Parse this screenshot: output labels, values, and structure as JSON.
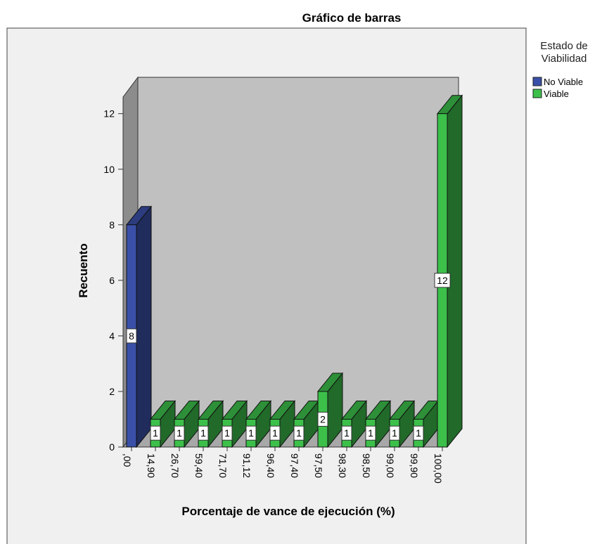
{
  "chart_data": {
    "type": "bar3d",
    "title": "Gráfico de barras",
    "x_label": "Porcentaje de vance de ejecución (%)",
    "y_label": "Recuento",
    "legend_title": "Estado de Viabilidad",
    "categories": [
      ",00",
      "14,90",
      "26,70",
      "59,40",
      "71,70",
      "91,12",
      "96,40",
      "97,40",
      "97,50",
      "98,30",
      "98,50",
      "99,00",
      "99,90",
      "100,00"
    ],
    "series": [
      {
        "name": "No Viable",
        "color": "#3a50a8",
        "values": [
          8,
          null,
          null,
          null,
          null,
          null,
          null,
          null,
          null,
          null,
          null,
          null,
          null,
          null
        ]
      },
      {
        "name": "Viable",
        "color": "#3cc04a",
        "values": [
          null,
          1,
          1,
          1,
          1,
          1,
          1,
          1,
          2,
          1,
          1,
          1,
          1,
          12
        ]
      }
    ],
    "ylim": [
      0,
      12.6
    ],
    "yticks": [
      0,
      2,
      4,
      6,
      8,
      10,
      12
    ]
  }
}
